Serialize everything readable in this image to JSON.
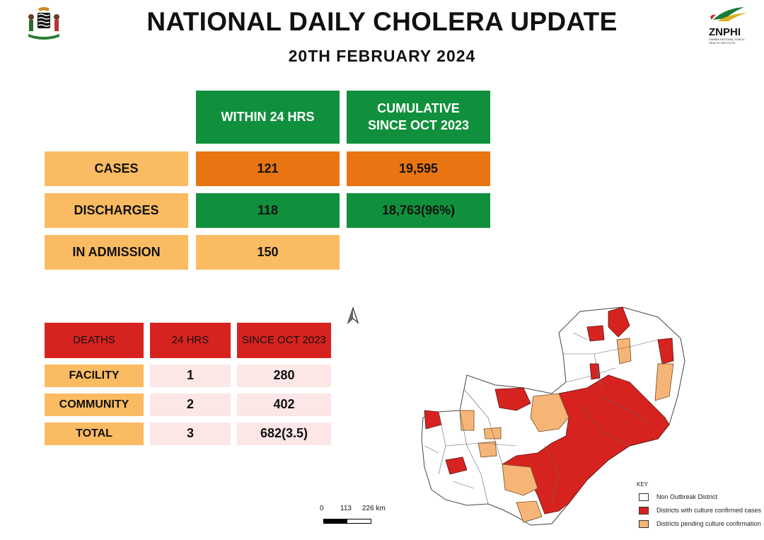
{
  "header": {
    "title": "NATIONAL DAILY CHOLERA UPDATE",
    "date": "20TH FEBRUARY  2024",
    "logo_text": "ZNPHI",
    "logo_subtext": "ZAMBIA NATIONAL PUBLIC HEALTH INSTITUTE"
  },
  "summary_table": {
    "headers": [
      "WITHIN 24 HRS",
      "CUMULATIVE SINCE OCT 2023"
    ],
    "rows": [
      {
        "label": "CASES",
        "within_24": "121",
        "cumulative": "19,595"
      },
      {
        "label": "DISCHARGES",
        "within_24": "118",
        "cumulative": "18,763(96%)"
      },
      {
        "label": "IN ADMISSION",
        "within_24": "150"
      }
    ]
  },
  "deaths_table": {
    "headers": [
      "DEATHS",
      "24 HRS",
      "SINCE OCT 2023"
    ],
    "rows": [
      {
        "label": "FACILITY",
        "h24": "1",
        "since": "280"
      },
      {
        "label": "COMMUNITY",
        "h24": "2",
        "since": "402"
      },
      {
        "label": "TOTAL",
        "h24": "3",
        "since": "682(3.5)"
      }
    ]
  },
  "map": {
    "scale_labels": [
      "0",
      "113",
      "226 km"
    ],
    "key_title": "KEY",
    "key_items": [
      {
        "label": "Non Outbreak District",
        "color": "#ffffff"
      },
      {
        "label": "Districts with culture confirmed cases",
        "color": "#d7231f"
      },
      {
        "label": "Districts pending culture confirmation",
        "color": "#f6b577"
      }
    ]
  },
  "colors": {
    "green": "#10903c",
    "orange": "#e87511",
    "peach": "#fbbb62",
    "red": "#d7231f",
    "pink": "#fde6e6"
  }
}
